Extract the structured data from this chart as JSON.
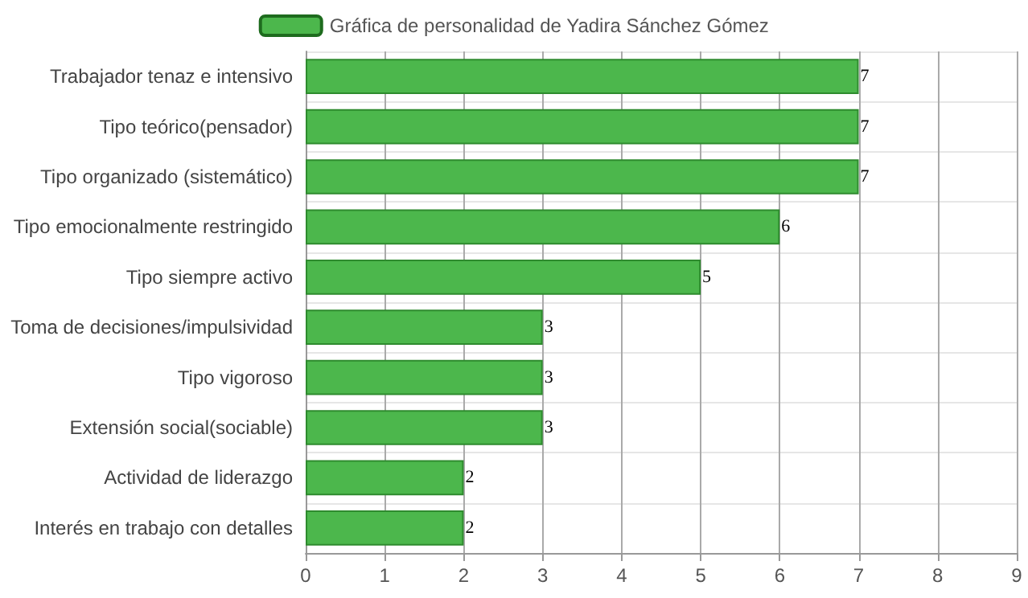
{
  "chart_data": {
    "type": "bar",
    "orientation": "horizontal",
    "categories": [
      "Trabajador tenaz e intensivo",
      "Tipo teórico(pensador)",
      "Tipo organizado (sistemático)",
      "Tipo emocionalmente restringido",
      "Tipo siempre activo",
      "Toma de decisiones/impulsividad",
      "Tipo vigoroso",
      "Extensión social(sociable)",
      "Actividad de liderazgo",
      "Interés en trabajo con detalles"
    ],
    "series": [
      {
        "name": "Gráfica de personalidad de Yadira Sánchez Gómez",
        "color": "#4cb74c",
        "values": [
          7,
          7,
          7,
          6,
          5,
          3,
          3,
          3,
          2,
          2
        ]
      }
    ],
    "xlim": [
      0,
      9
    ],
    "xticks": [
      0,
      1,
      2,
      3,
      4,
      5,
      6,
      7,
      8,
      9
    ],
    "grid": true,
    "legend": "top",
    "data_labels": true
  }
}
